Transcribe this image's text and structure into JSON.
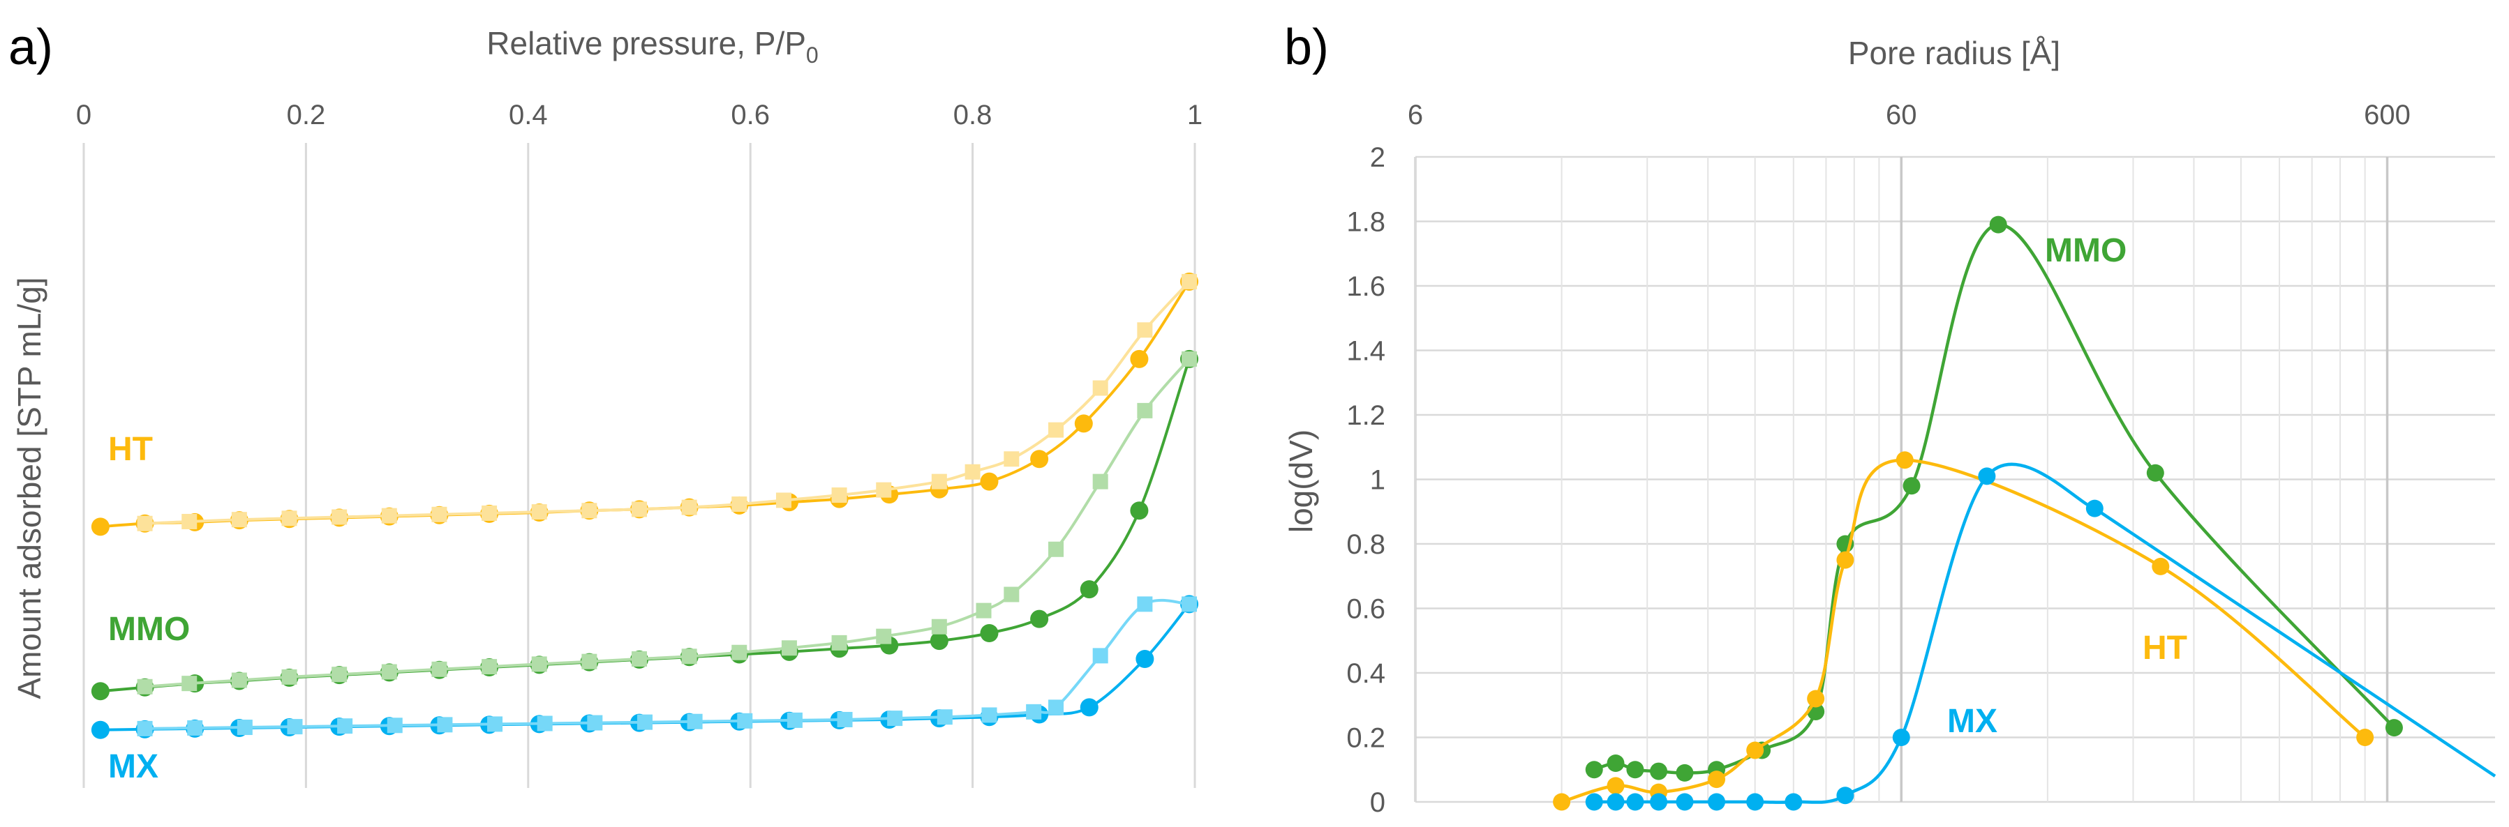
{
  "colors": {
    "ht": "#FDBA0D",
    "ht_light": "#FDE29A",
    "mmo": "#3FA535",
    "mmo_light": "#B1DDA8",
    "mx": "#00B0F0",
    "mx_light": "#76D8F8",
    "grid": "#D9D9D9",
    "axis_text": "#595959"
  },
  "chart_data": [
    {
      "type": "line",
      "panel_label": "a)",
      "title": "",
      "xlabel": "Relative pressure, P/P",
      "xlabel_sub": "0",
      "ylabel": "Amount adsorbed [STP mL/g]",
      "xlim": [
        0,
        1
      ],
      "ylim": [
        0,
        1
      ],
      "x_ticks": [
        "0",
        "0.2",
        "0.4",
        "0.6",
        "0.8",
        "1"
      ],
      "x_tick_values": [
        0,
        0.2,
        0.4,
        0.6,
        0.8,
        1
      ],
      "x_axis_position": "top",
      "y_tick_labels_shown": false,
      "grid": "vertical",
      "series": [
        {
          "name": "HT",
          "branch": "adsorption",
          "color": "#FDBA0D",
          "marker": "circle",
          "x": [
            0.015,
            0.055,
            0.1,
            0.14,
            0.185,
            0.23,
            0.275,
            0.32,
            0.365,
            0.41,
            0.455,
            0.5,
            0.545,
            0.59,
            0.635,
            0.68,
            0.725,
            0.77,
            0.815,
            0.86,
            0.9,
            0.95,
            0.995
          ],
          "y": [
            0.405,
            0.41,
            0.412,
            0.415,
            0.417,
            0.419,
            0.421,
            0.423,
            0.425,
            0.427,
            0.43,
            0.432,
            0.435,
            0.438,
            0.443,
            0.448,
            0.455,
            0.463,
            0.475,
            0.51,
            0.565,
            0.665,
            0.785
          ]
        },
        {
          "name": "HT",
          "branch": "desorption",
          "color": "#FDE29A",
          "marker": "square",
          "x": [
            0.995,
            0.955,
            0.915,
            0.875,
            0.835,
            0.8,
            0.77,
            0.72,
            0.68,
            0.63,
            0.59,
            0.545,
            0.5,
            0.455,
            0.41,
            0.365,
            0.32,
            0.275,
            0.23,
            0.185,
            0.14,
            0.095,
            0.055
          ],
          "y": [
            0.785,
            0.71,
            0.62,
            0.555,
            0.51,
            0.49,
            0.475,
            0.462,
            0.454,
            0.446,
            0.44,
            0.435,
            0.432,
            0.43,
            0.428,
            0.426,
            0.424,
            0.422,
            0.42,
            0.418,
            0.416,
            0.413,
            0.41
          ]
        },
        {
          "name": "MMO",
          "branch": "adsorption",
          "color": "#3FA535",
          "marker": "circle",
          "x": [
            0.015,
            0.055,
            0.1,
            0.14,
            0.185,
            0.23,
            0.275,
            0.32,
            0.365,
            0.41,
            0.455,
            0.5,
            0.545,
            0.59,
            0.635,
            0.68,
            0.725,
            0.77,
            0.815,
            0.86,
            0.905,
            0.95,
            0.995
          ],
          "y": [
            0.15,
            0.156,
            0.162,
            0.166,
            0.171,
            0.175,
            0.179,
            0.183,
            0.187,
            0.191,
            0.195,
            0.199,
            0.203,
            0.207,
            0.211,
            0.216,
            0.221,
            0.228,
            0.24,
            0.262,
            0.308,
            0.43,
            0.665
          ]
        },
        {
          "name": "MMO",
          "branch": "desorption",
          "color": "#B1DDA8",
          "marker": "square",
          "x": [
            0.995,
            0.955,
            0.915,
            0.875,
            0.835,
            0.81,
            0.77,
            0.72,
            0.68,
            0.635,
            0.59,
            0.545,
            0.5,
            0.455,
            0.41,
            0.365,
            0.32,
            0.275,
            0.23,
            0.185,
            0.14,
            0.095,
            0.055
          ],
          "y": [
            0.665,
            0.585,
            0.475,
            0.37,
            0.3,
            0.275,
            0.25,
            0.235,
            0.225,
            0.217,
            0.21,
            0.204,
            0.2,
            0.196,
            0.192,
            0.188,
            0.184,
            0.18,
            0.176,
            0.172,
            0.167,
            0.162,
            0.157
          ]
        },
        {
          "name": "MX",
          "branch": "adsorption",
          "color": "#00B0F0",
          "marker": "circle",
          "x": [
            0.015,
            0.055,
            0.1,
            0.14,
            0.185,
            0.23,
            0.275,
            0.32,
            0.365,
            0.41,
            0.455,
            0.5,
            0.545,
            0.59,
            0.635,
            0.68,
            0.725,
            0.77,
            0.815,
            0.86,
            0.905,
            0.955,
            0.995
          ],
          "y": [
            0.09,
            0.091,
            0.092,
            0.093,
            0.094,
            0.095,
            0.096,
            0.097,
            0.098,
            0.099,
            0.1,
            0.101,
            0.102,
            0.103,
            0.104,
            0.105,
            0.106,
            0.108,
            0.11,
            0.114,
            0.125,
            0.2,
            0.285
          ]
        },
        {
          "name": "MX",
          "branch": "desorption",
          "color": "#76D8F8",
          "marker": "square",
          "x": [
            0.995,
            0.955,
            0.915,
            0.875,
            0.855,
            0.815,
            0.775,
            0.73,
            0.685,
            0.64,
            0.595,
            0.55,
            0.505,
            0.46,
            0.415,
            0.37,
            0.325,
            0.28,
            0.235,
            0.19,
            0.145,
            0.1,
            0.055
          ],
          "y": [
            0.285,
            0.285,
            0.205,
            0.125,
            0.118,
            0.113,
            0.11,
            0.108,
            0.106,
            0.105,
            0.104,
            0.103,
            0.102,
            0.101,
            0.1,
            0.099,
            0.098,
            0.097,
            0.096,
            0.095,
            0.094,
            0.093,
            0.092
          ]
        }
      ],
      "annotations": [
        {
          "text": "HT",
          "color": "#FDBA0D"
        },
        {
          "text": "MMO",
          "color": "#3FA535"
        },
        {
          "text": "MX",
          "color": "#00B0F0"
        }
      ]
    },
    {
      "type": "line",
      "panel_label": "b)",
      "title": "",
      "xlabel": "Pore radius [Å]",
      "ylabel": "log(dV)",
      "x_scale": "log",
      "xlim": [
        6,
        1000
      ],
      "ylim": [
        0,
        2
      ],
      "x_ticks": [
        "6",
        "60",
        "600"
      ],
      "x_tick_values": [
        6,
        60,
        600
      ],
      "x_axis_position": "top",
      "y_ticks": [
        "0",
        "0.2",
        "0.4",
        "0.6",
        "0.8",
        "1",
        "1.2",
        "1.4",
        "1.6",
        "1.8",
        "2"
      ],
      "y_tick_values": [
        0,
        0.2,
        0.4,
        0.6,
        0.8,
        1,
        1.2,
        1.4,
        1.6,
        1.8,
        2
      ],
      "grid": "both (log minor x)",
      "series": [
        {
          "name": "MMO",
          "color": "#3FA535",
          "x": [
            14.0,
            15.5,
            17.0,
            19.0,
            21.5,
            25.0,
            31.0,
            40.0,
            46.0,
            63.0,
            95.0,
            200.0,
            620.0
          ],
          "y": [
            0.1,
            0.12,
            0.1,
            0.095,
            0.09,
            0.1,
            0.16,
            0.28,
            0.8,
            0.98,
            1.79,
            1.02,
            0.23
          ]
        },
        {
          "name": "HT",
          "color": "#FDBA0D",
          "x": [
            12.0,
            15.5,
            19.0,
            25.0,
            30.0,
            40.0,
            46.0,
            61.0,
            205.0,
            540.0
          ],
          "y": [
            0.0,
            0.05,
            0.03,
            0.07,
            0.16,
            0.32,
            0.75,
            1.06,
            0.73,
            0.2
          ]
        },
        {
          "name": "MX",
          "color": "#00B0F0",
          "x": [
            14.0,
            15.5,
            17.0,
            19.0,
            21.5,
            25.0,
            30.0,
            36.0,
            46.0,
            60.0,
            90.0,
            150.0
          ],
          "y": [
            0.0,
            0.0,
            0.0,
            0.0,
            0.0,
            0.0,
            0.0,
            0.0,
            0.02,
            0.2,
            1.01,
            0.91
          ]
        }
      ],
      "mx_tail": {
        "x": [
          150.0,
          1000.0
        ],
        "y": [
          0.91,
          0.08
        ]
      },
      "annotations": [
        {
          "text": "MMO",
          "color": "#3FA535"
        },
        {
          "text": "HT",
          "color": "#FDBA0D"
        },
        {
          "text": "MX",
          "color": "#00B0F0"
        }
      ]
    }
  ]
}
